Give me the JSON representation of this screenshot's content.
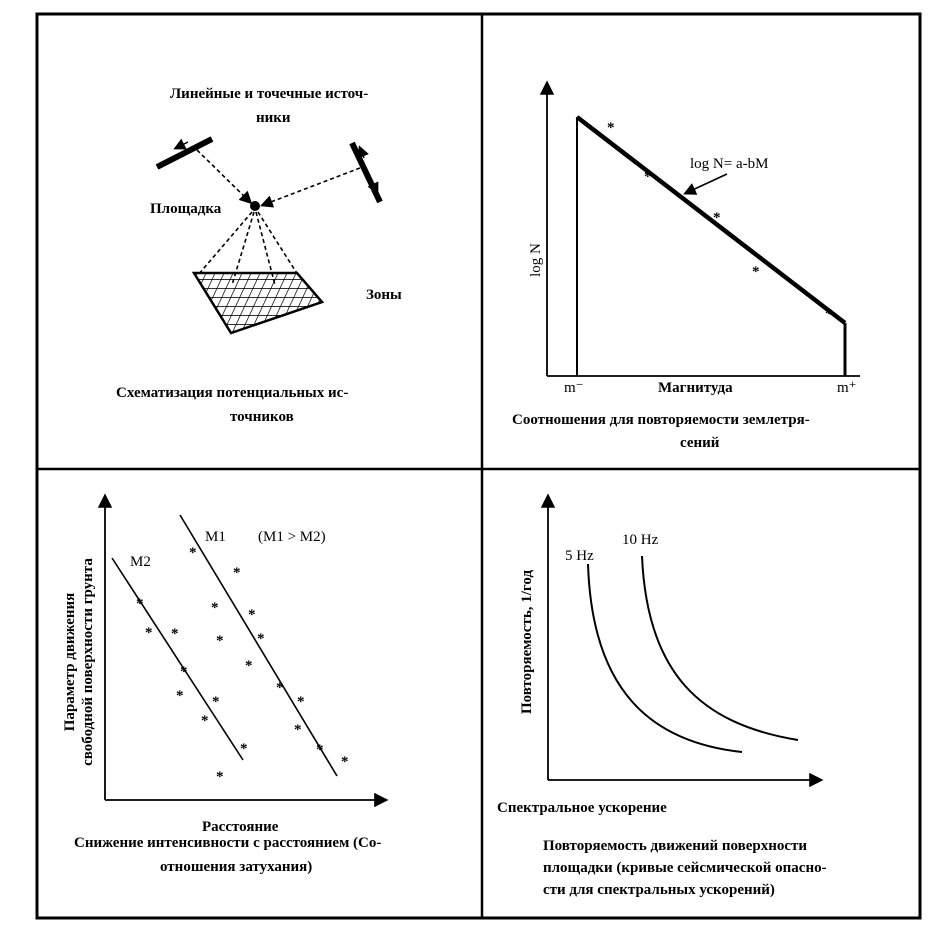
{
  "panel_tl": {
    "sources_label_1": "Линейные и точечные источ-",
    "sources_label_2": "ники",
    "site_label": "Площадка",
    "zones_label": "Зоны",
    "caption_1": "Схематизация потенциальных ис-",
    "caption_2": "точников"
  },
  "panel_tr": {
    "ylabel": "log N",
    "formula": "log N= a-bM",
    "xlabel": "Магнитуда",
    "m_min": "m⁻",
    "m_max": "m⁺",
    "caption_1": "Соотношения для повторяемости землетря-",
    "caption_2": "сений"
  },
  "panel_bl": {
    "ylabel_1": "Параметр движения",
    "ylabel_2": "свободной поверхности грунта",
    "m1": "M1",
    "m2": "M2",
    "relation": "(M1 > M2)",
    "xlabel": "Расстояние",
    "caption_1": "Снижение интенсивности с расстоянием (Со-",
    "caption_2": "отношения затухания)"
  },
  "panel_br": {
    "ylabel": "Повторяемость, 1/год",
    "curve_5": "5 Hz",
    "curve_10": "10 Hz",
    "xlabel": "Спектральное ускорение",
    "caption_1": "Повторяемость движений поверхности",
    "caption_2": "площадки (кривые сейсмической опасно-",
    "caption_3": "сти для спектральных ускорений)"
  }
}
